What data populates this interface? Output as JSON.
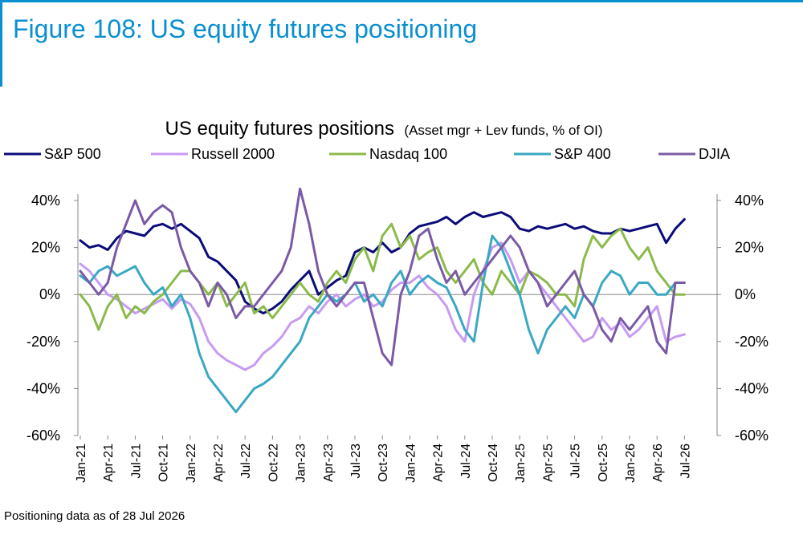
{
  "figure_title": "Figure 108: US equity futures positioning",
  "footnote": "Positioning data as of 28 Jul 2026",
  "colors": {
    "accent": "#0a8fd1",
    "sp500": "#0b0b7a",
    "russell2000": "#c79bf2",
    "nasdaq100": "#8cba4a",
    "sp400": "#3ba8c3",
    "djia": "#7a5aa6"
  },
  "chart_data": {
    "type": "line",
    "title": "US equity futures positions",
    "subtitle": "(Asset mgr + Lev funds, % of OI)",
    "legend_position": "top",
    "grid": false,
    "ylim": [
      -60,
      40
    ],
    "y_ticks": [
      "40%",
      "20%",
      "0%",
      "-20%",
      "-40%",
      "-60%"
    ],
    "y_ticks_right": [
      "40%",
      "20%",
      "0%",
      "-20%",
      "-40%",
      "-60%"
    ],
    "x_ticks": [
      "Jan-21",
      "Apr-21",
      "Jul-21",
      "Oct-21",
      "Jan-22",
      "Apr-22",
      "Jul-22",
      "Oct-22",
      "Jan-23",
      "Apr-23",
      "Jul-23",
      "Oct-23",
      "Jan-24",
      "Apr-24",
      "Jul-24",
      "Oct-24",
      "Jan-25",
      "Apr-25",
      "Jul-25",
      "Oct-25",
      "Jan-26",
      "Apr-26",
      "Jul-26"
    ],
    "x": [
      "2021-01",
      "2021-02",
      "2021-03",
      "2021-04",
      "2021-05",
      "2021-06",
      "2021-07",
      "2021-08",
      "2021-09",
      "2021-10",
      "2021-11",
      "2021-12",
      "2022-01",
      "2022-02",
      "2022-03",
      "2022-04",
      "2022-05",
      "2022-06",
      "2022-07",
      "2022-08",
      "2022-09",
      "2022-10",
      "2022-11",
      "2022-12",
      "2023-01",
      "2023-02",
      "2023-03",
      "2023-04",
      "2023-05",
      "2023-06",
      "2023-07",
      "2023-08",
      "2023-09",
      "2023-10",
      "2023-11",
      "2023-12",
      "2024-01",
      "2024-02",
      "2024-03",
      "2024-04",
      "2024-05",
      "2024-06",
      "2024-07",
      "2024-08",
      "2024-09",
      "2024-10",
      "2024-11",
      "2024-12",
      "2025-01",
      "2025-02",
      "2025-03",
      "2025-04",
      "2025-05",
      "2025-06",
      "2025-07",
      "2025-08",
      "2025-09",
      "2025-10",
      "2025-11",
      "2025-12",
      "2026-01",
      "2026-02",
      "2026-03",
      "2026-04",
      "2026-05",
      "2026-06",
      "2026-07"
    ],
    "series": [
      {
        "name": "S&P 500",
        "color": "#0b0b7a",
        "values": [
          23,
          20,
          21,
          19,
          24,
          27,
          26,
          25,
          29,
          30,
          28,
          30,
          27,
          24,
          16,
          14,
          10,
          6,
          -3,
          -6,
          -8,
          -6,
          -3,
          2,
          6,
          10,
          0,
          3,
          6,
          8,
          18,
          20,
          18,
          22,
          18,
          20,
          26,
          29,
          30,
          31,
          33,
          30,
          33,
          35,
          33,
          34,
          35,
          33,
          28,
          27,
          29,
          28,
          29,
          30,
          28,
          29,
          27,
          26,
          26,
          28,
          27,
          28,
          29,
          30,
          22,
          28,
          32
        ]
      },
      {
        "name": "Russell 2000",
        "color": "#c79bf2",
        "values": [
          13,
          10,
          5,
          0,
          -2,
          -5,
          -8,
          -6,
          -4,
          -2,
          -6,
          -2,
          -4,
          -10,
          -20,
          -25,
          -28,
          -30,
          -32,
          -30,
          -25,
          -22,
          -18,
          -12,
          -10,
          -5,
          -8,
          -3,
          0,
          -5,
          -2,
          0,
          -5,
          -3,
          2,
          5,
          5,
          8,
          3,
          0,
          -5,
          -15,
          -20,
          0,
          10,
          20,
          22,
          15,
          5,
          10,
          5,
          0,
          -5,
          -10,
          -15,
          -20,
          -18,
          -10,
          -15,
          -12,
          -18,
          -15,
          -10,
          -5,
          -20,
          -18,
          -17
        ]
      },
      {
        "name": "Nasdaq 100",
        "color": "#8cba4a",
        "values": [
          0,
          -5,
          -15,
          -5,
          0,
          -10,
          -5,
          -8,
          -3,
          0,
          5,
          10,
          10,
          5,
          0,
          5,
          -5,
          0,
          5,
          -8,
          -5,
          -10,
          -5,
          0,
          5,
          0,
          -3,
          5,
          10,
          5,
          15,
          20,
          10,
          25,
          30,
          20,
          25,
          15,
          18,
          20,
          10,
          5,
          10,
          15,
          5,
          0,
          10,
          5,
          0,
          10,
          8,
          5,
          0,
          0,
          -5,
          15,
          25,
          20,
          25,
          28,
          20,
          15,
          20,
          10,
          5,
          0,
          0
        ]
      },
      {
        "name": "S&P 400",
        "color": "#3ba8c3",
        "values": [
          8,
          5,
          10,
          12,
          8,
          10,
          12,
          5,
          0,
          3,
          -5,
          0,
          -10,
          -25,
          -35,
          -40,
          -45,
          -50,
          -45,
          -40,
          -38,
          -35,
          -30,
          -25,
          -20,
          -10,
          -5,
          0,
          -3,
          0,
          5,
          -3,
          0,
          -5,
          5,
          10,
          0,
          5,
          8,
          5,
          3,
          -5,
          -15,
          -20,
          5,
          25,
          20,
          10,
          0,
          -15,
          -25,
          -15,
          -10,
          -5,
          -10,
          0,
          -5,
          5,
          10,
          8,
          0,
          5,
          5,
          0,
          0,
          5,
          5
        ]
      },
      {
        "name": "DJIA",
        "color": "#7a5aa6",
        "values": [
          10,
          5,
          0,
          5,
          20,
          30,
          40,
          30,
          35,
          38,
          35,
          20,
          10,
          5,
          -5,
          5,
          0,
          -10,
          -5,
          -5,
          0,
          5,
          10,
          20,
          45,
          30,
          10,
          0,
          -5,
          0,
          5,
          5,
          -10,
          -25,
          -30,
          0,
          10,
          25,
          28,
          15,
          5,
          10,
          0,
          5,
          10,
          15,
          20,
          25,
          20,
          10,
          5,
          -5,
          0,
          5,
          10,
          0,
          -5,
          -15,
          -20,
          -10,
          -15,
          -10,
          -5,
          -20,
          -25,
          5,
          5
        ]
      }
    ]
  }
}
